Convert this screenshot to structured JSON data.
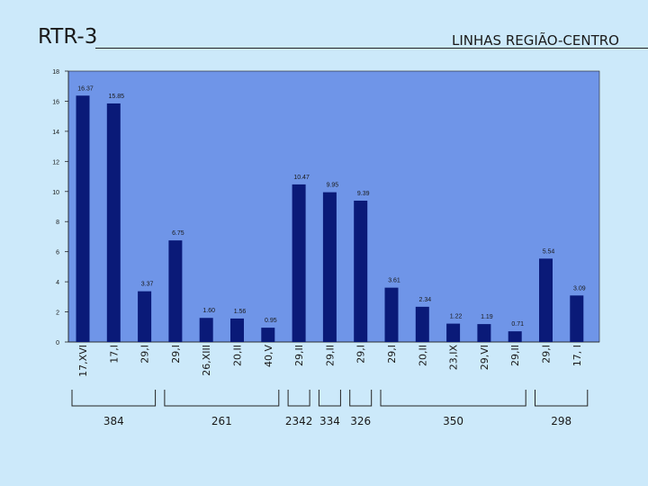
{
  "page": {
    "title": "RTR-3",
    "subtitle": "LINHAS REGIÃO-CENTRO"
  },
  "colors": {
    "background": "#cce9fa",
    "plot_area": "#6f95e8",
    "bar": "#0a1a78",
    "text": "#1a1a1a"
  },
  "chart_data": {
    "type": "bar",
    "title": "",
    "xlabel": "",
    "ylabel": "",
    "ylim": [
      0,
      18
    ],
    "yticks": [
      0,
      2,
      4,
      6,
      8,
      10,
      12,
      14,
      16,
      18
    ],
    "grid": false,
    "legend": "none",
    "categories": [
      "17,XVI",
      "17,I",
      "29,I",
      "29,I",
      "26,XIII",
      "20,II",
      "40,V",
      "29,II",
      "29,II",
      "29,I",
      "29,I",
      "20,II",
      "23,IX",
      "29,VI",
      "29,II",
      "29,I",
      "17, I"
    ],
    "values": [
      16.37,
      15.85,
      3.37,
      6.75,
      1.6,
      1.56,
      0.95,
      10.47,
      9.95,
      9.39,
      3.61,
      2.34,
      1.22,
      1.19,
      0.71,
      5.54,
      3.09
    ],
    "data_labels": [
      "16.37",
      "15.85",
      "3.37",
      "6.75",
      "1.60",
      "1.56",
      "0.95",
      "10.47",
      "9.95",
      "9.39",
      "3.61",
      "2.34",
      "1.22",
      "1.19",
      "0.71",
      "5.54",
      "3.09"
    ],
    "groups": [
      {
        "label": "384",
        "first": 0,
        "last": 2
      },
      {
        "label": "261",
        "first": 3,
        "last": 6
      },
      {
        "label": "2342",
        "first": 7,
        "last": 7
      },
      {
        "label": "334",
        "first": 8,
        "last": 8
      },
      {
        "label": "326",
        "first": 9,
        "last": 9
      },
      {
        "label": "350",
        "first": 10,
        "last": 14
      },
      {
        "label": "298",
        "first": 15,
        "last": 16
      }
    ]
  }
}
